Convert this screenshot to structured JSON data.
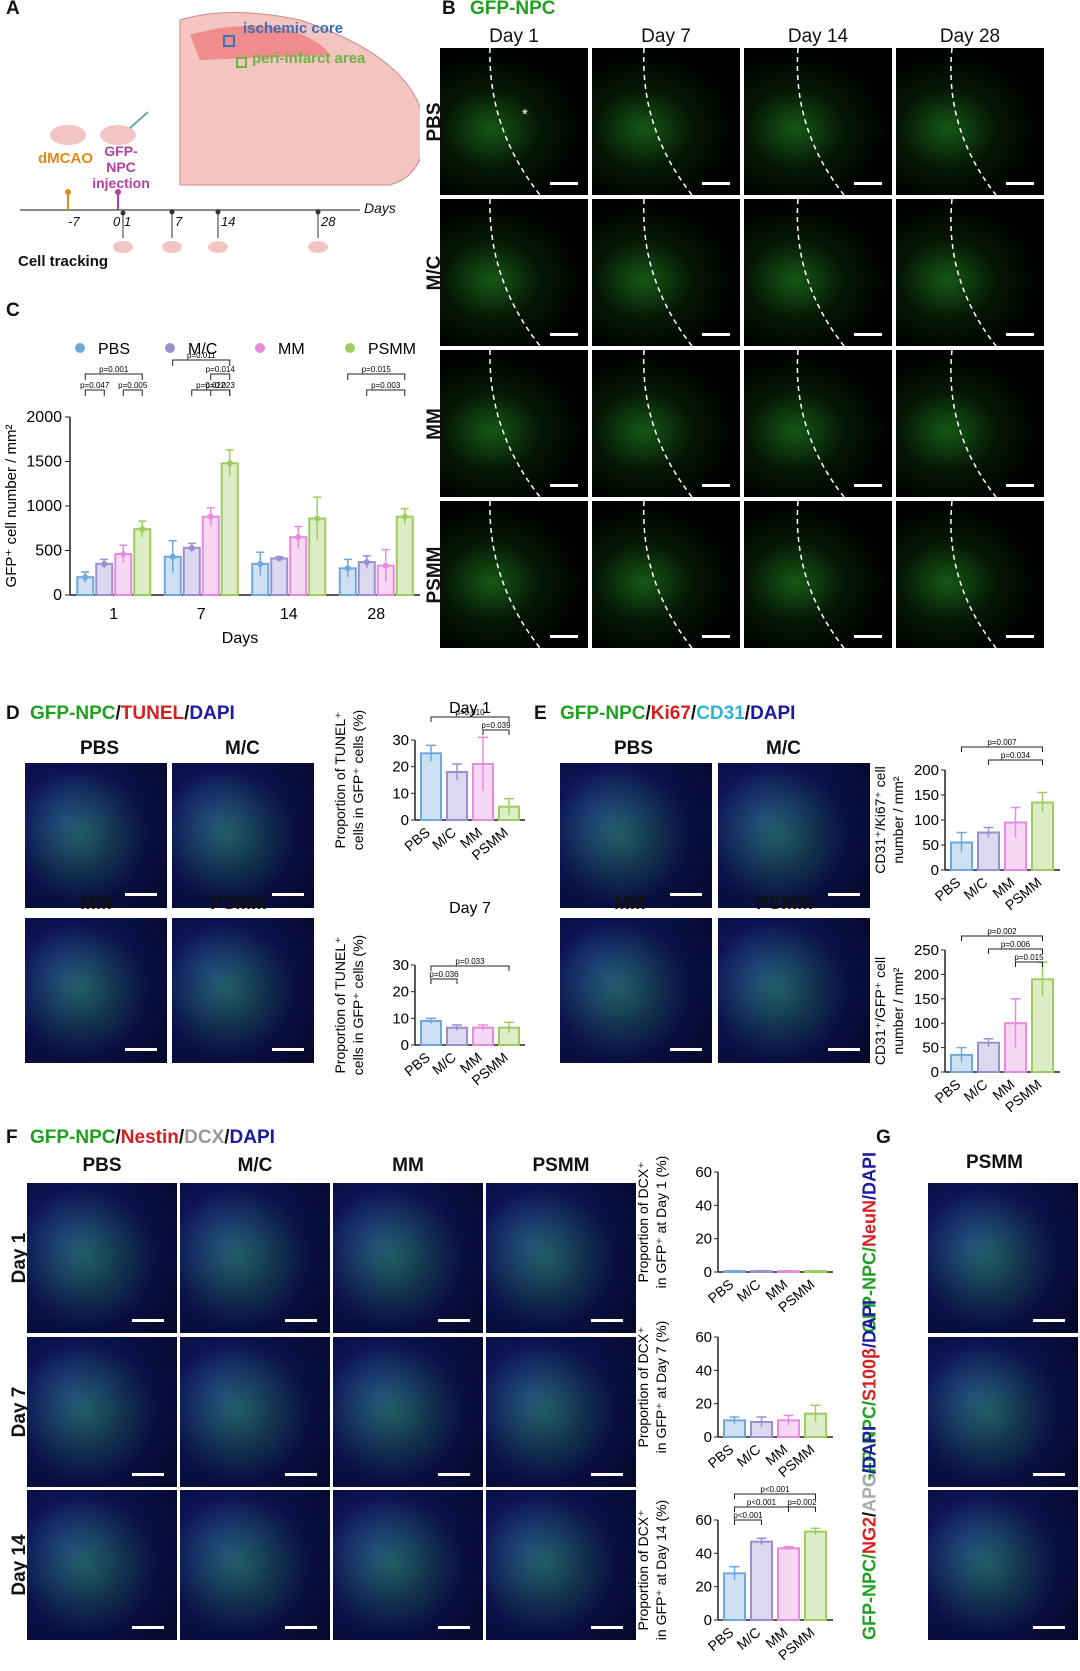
{
  "panels": {
    "A": {
      "letter": "A",
      "ischemic_core": "ischemic core",
      "peri_infarct": "peri-infarct area",
      "dmcao": "dMCAO",
      "gfp_npc_injection": [
        "GFP-",
        "NPC",
        "injection"
      ],
      "days_label": "Days",
      "timepoints": [
        "-7",
        "0",
        "1",
        "7",
        "14",
        "28"
      ],
      "cell_tracking": "Cell tracking",
      "colors": {
        "ischemic": "#3b6fb6",
        "peri": "#6cb33f",
        "dmcao": "#e08a1e",
        "inject": "#b43fa0"
      }
    },
    "B": {
      "letter": "B",
      "title": "GFP-NPC",
      "columns": [
        "Day 1",
        "Day 7",
        "Day 14",
        "Day 28"
      ],
      "rows": [
        "PBS",
        "M/C",
        "MM",
        "PSMM"
      ],
      "asterisk": "*"
    },
    "C": {
      "letter": "C"
    },
    "D": {
      "letter": "D",
      "title_parts": [
        "GFP-NPC",
        "/",
        "TUNEL",
        "/",
        "DAPI"
      ],
      "image_labels": [
        "PBS",
        "M/C",
        "MM",
        "PSMM"
      ]
    },
    "E": {
      "letter": "E",
      "title_parts": [
        "GFP-NPC",
        "/",
        "Ki67",
        "/",
        "CD31",
        "/",
        "DAPI"
      ],
      "image_labels": [
        "PBS",
        "M/C",
        "MM",
        "PSMM"
      ]
    },
    "F": {
      "letter": "F",
      "title_parts": [
        "GFP-NPC",
        "/",
        "Nestin",
        "/",
        "DCX",
        "/",
        "DAPI"
      ],
      "columns": [
        "PBS",
        "M/C",
        "MM",
        "PSMM"
      ],
      "rows": [
        "Day 1",
        "Day 7",
        "Day 14"
      ]
    },
    "G": {
      "letter": "G",
      "title": "PSMM",
      "rows": [
        [
          "GFP-NPC/",
          "NeuN",
          "/DAPI"
        ],
        [
          "GFP-NPC/",
          "S100β",
          "/DAPI"
        ],
        [
          "GFP-NPC/",
          "NG2",
          "/",
          "APC",
          "/DAPI"
        ]
      ]
    }
  },
  "colors": {
    "PBS": "#6fa8dc",
    "M/C": "#9b8fd0",
    "MM": "#e58ce0",
    "PSMM": "#9dcc5f",
    "green": "#20a020",
    "red": "#d42020",
    "cyan": "#2bb6d6",
    "blue": "#1a1aa0",
    "gray": "#aaaaaa"
  },
  "chart_data": [
    {
      "id": "C",
      "type": "bar",
      "ylabel": "GFP⁺ cell number / mm²",
      "xlabel": "Days",
      "categories": [
        "1",
        "7",
        "14",
        "28"
      ],
      "legend": [
        "PBS",
        "M/C",
        "MM",
        "PSMM"
      ],
      "ylim": [
        0,
        2000
      ],
      "yticks": [
        "0",
        "500",
        "1000",
        "1500",
        "2000"
      ],
      "series": [
        {
          "name": "PBS",
          "values": [
            200,
            430,
            350,
            300
          ],
          "err": [
            60,
            180,
            130,
            100
          ]
        },
        {
          "name": "M/C",
          "values": [
            350,
            530,
            410,
            370
          ],
          "err": [
            50,
            50,
            20,
            70
          ]
        },
        {
          "name": "MM",
          "values": [
            460,
            880,
            650,
            330
          ],
          "err": [
            100,
            100,
            120,
            180
          ]
        },
        {
          "name": "PSMM",
          "values": [
            740,
            1480,
            860,
            880
          ],
          "err": [
            90,
            150,
            240,
            90
          ]
        }
      ],
      "annotations": [
        {
          "text": "p=0.001",
          "group": 0,
          "from": 0,
          "to": 3,
          "level": 3
        },
        {
          "text": "p=0.047",
          "group": 0,
          "from": 0,
          "to": 1,
          "level": 2
        },
        {
          "text": "p=0.005",
          "group": 0,
          "from": 2,
          "to": 3,
          "level": 2
        },
        {
          "text": "p=0.011",
          "group": 1,
          "from": 0,
          "to": 3,
          "level": 4
        },
        {
          "text": "p=0.014",
          "group": 1,
          "from": 2,
          "to": 3,
          "level": 3
        },
        {
          "text": "p=0.022",
          "group": 1,
          "from": 1,
          "to": 3,
          "level": 2
        },
        {
          "text": "p=0.023",
          "group": 1,
          "from": 2,
          "to": 3,
          "level": 2
        },
        {
          "text": "p=0.015",
          "group": 3,
          "from": 0,
          "to": 3,
          "level": 3
        },
        {
          "text": "p=0.003",
          "group": 3,
          "from": 1,
          "to": 3,
          "level": 2
        }
      ]
    },
    {
      "id": "D-day1",
      "type": "bar",
      "title": "Day 1",
      "ylabel": [
        "Proportion of TUNEL⁺",
        "cells in GFP⁺ cells (%)"
      ],
      "categories": [
        "PBS",
        "M/C",
        "MM",
        "PSMM"
      ],
      "values": [
        25,
        18,
        21,
        5
      ],
      "err": [
        3,
        3,
        10,
        3
      ],
      "ylim": [
        0,
        30
      ],
      "yticks": [
        "0",
        "10",
        "20",
        "30"
      ],
      "annotations": [
        {
          "text": "p=0.010",
          "from": 0,
          "to": 3,
          "level": 2
        },
        {
          "text": "p=0.039",
          "from": 2,
          "to": 3,
          "level": 1
        }
      ]
    },
    {
      "id": "D-day7",
      "type": "bar",
      "title": "Day 7",
      "ylabel": [
        "Proportion of TUNEL⁺",
        "cells in GFP⁺ cells (%)"
      ],
      "categories": [
        "PBS",
        "M/C",
        "MM",
        "PSMM"
      ],
      "values": [
        9,
        6.5,
        6.5,
        6.5
      ],
      "err": [
        1,
        1,
        1,
        2
      ],
      "ylim": [
        0,
        30
      ],
      "yticks": [
        "0",
        "10",
        "20",
        "30"
      ],
      "annotations": [
        {
          "text": "p=0.033",
          "from": 0,
          "to": 3,
          "level": 2
        },
        {
          "text": "p=0.036",
          "from": 0,
          "to": 1,
          "level": 1
        }
      ]
    },
    {
      "id": "E-top",
      "type": "bar",
      "ylabel": [
        "CD31⁺/Ki67⁺ cell",
        "number / mm²"
      ],
      "categories": [
        "PBS",
        "M/C",
        "MM",
        "PSMM"
      ],
      "values": [
        55,
        75,
        95,
        135
      ],
      "err": [
        20,
        10,
        30,
        20
      ],
      "ylim": [
        0,
        200
      ],
      "yticks": [
        "0",
        "50",
        "100",
        "150",
        "200"
      ],
      "annotations": [
        {
          "text": "p=0.007",
          "from": 0,
          "to": 3,
          "level": 2
        },
        {
          "text": "p=0.034",
          "from": 1,
          "to": 3,
          "level": 1
        }
      ]
    },
    {
      "id": "E-bottom",
      "type": "bar",
      "ylabel": [
        "CD31⁺/GFP⁺ cell",
        "number / mm²"
      ],
      "categories": [
        "PBS",
        "M/C",
        "MM",
        "PSMM"
      ],
      "values": [
        35,
        60,
        100,
        190
      ],
      "err": [
        15,
        8,
        50,
        35
      ],
      "ylim": [
        0,
        250
      ],
      "yticks": [
        "0",
        "50",
        "100",
        "150",
        "200",
        "250"
      ],
      "annotations": [
        {
          "text": "p=0.002",
          "from": 0,
          "to": 3,
          "level": 3
        },
        {
          "text": "p=0.006",
          "from": 1,
          "to": 3,
          "level": 2
        },
        {
          "text": "p=0.015",
          "from": 2,
          "to": 3,
          "level": 1
        }
      ]
    },
    {
      "id": "F-day1",
      "type": "bar",
      "ylabel": [
        "Proportion of DCX⁺",
        "in GFP⁺ at Day 1 (%)"
      ],
      "categories": [
        "PBS",
        "M/C",
        "MM",
        "PSMM"
      ],
      "values": [
        0.5,
        0.5,
        0.5,
        0.5
      ],
      "err": [
        0.3,
        0.3,
        0.3,
        0.3
      ],
      "ylim": [
        0,
        60
      ],
      "yticks": [
        "0",
        "20",
        "40",
        "60"
      ],
      "annotations": []
    },
    {
      "id": "F-day7",
      "type": "bar",
      "ylabel": [
        "Proportion of DCX⁺",
        "in GFP⁺ at Day 7 (%)"
      ],
      "categories": [
        "PBS",
        "M/C",
        "MM",
        "PSMM"
      ],
      "values": [
        10,
        9,
        10,
        14
      ],
      "err": [
        2,
        3,
        3,
        5
      ],
      "ylim": [
        0,
        60
      ],
      "yticks": [
        "0",
        "20",
        "40",
        "60"
      ],
      "annotations": []
    },
    {
      "id": "F-day14",
      "type": "bar",
      "ylabel": [
        "Proportion of DCX⁺",
        "in GFP⁺ at Day 14 (%)"
      ],
      "categories": [
        "PBS",
        "M/C",
        "MM",
        "PSMM"
      ],
      "values": [
        28,
        47,
        43,
        53
      ],
      "err": [
        4,
        2,
        1,
        2
      ],
      "ylim": [
        0,
        60
      ],
      "yticks": [
        "0",
        "20",
        "40",
        "60"
      ],
      "annotations": [
        {
          "text": "p<0.001",
          "from": 0,
          "to": 3,
          "level": 3
        },
        {
          "text": "p<0.001",
          "from": 0,
          "to": 2,
          "level": 2
        },
        {
          "text": "p=0.002",
          "from": 2,
          "to": 3,
          "level": 2
        },
        {
          "text": "p<0.001",
          "from": 0,
          "to": 1,
          "level": 1
        }
      ]
    }
  ]
}
